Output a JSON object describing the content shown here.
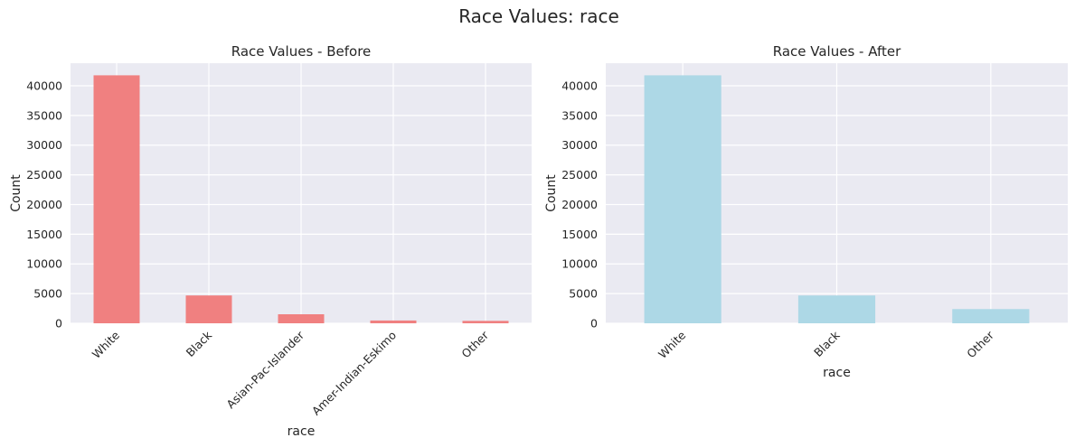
{
  "figure": {
    "suptitle": "Race Values: race"
  },
  "chart_data": [
    {
      "type": "bar",
      "title": "Race Values - Before",
      "xlabel": "race",
      "ylabel": "Count",
      "categories": [
        "White",
        "Black",
        "Asian-Pac-Islander",
        "Amer-Indian-Eskimo",
        "Other"
      ],
      "values": [
        41762,
        4685,
        1519,
        470,
        406
      ],
      "ylim": [
        0,
        43800
      ],
      "yticks": [
        0,
        5000,
        10000,
        15000,
        20000,
        25000,
        30000,
        35000,
        40000
      ],
      "bar_color": "#f08080",
      "background": "#eaeaf2",
      "grid": true,
      "xtick_rotation": 45
    },
    {
      "type": "bar",
      "title": "Race Values - After",
      "xlabel": "race",
      "ylabel": "Count",
      "categories": [
        "White",
        "Black",
        "Other"
      ],
      "values": [
        41762,
        4685,
        2395
      ],
      "ylim": [
        0,
        43800
      ],
      "yticks": [
        0,
        5000,
        10000,
        15000,
        20000,
        25000,
        30000,
        35000,
        40000
      ],
      "bar_color": "#add8e6",
      "background": "#eaeaf2",
      "grid": true,
      "xtick_rotation": 45
    }
  ]
}
